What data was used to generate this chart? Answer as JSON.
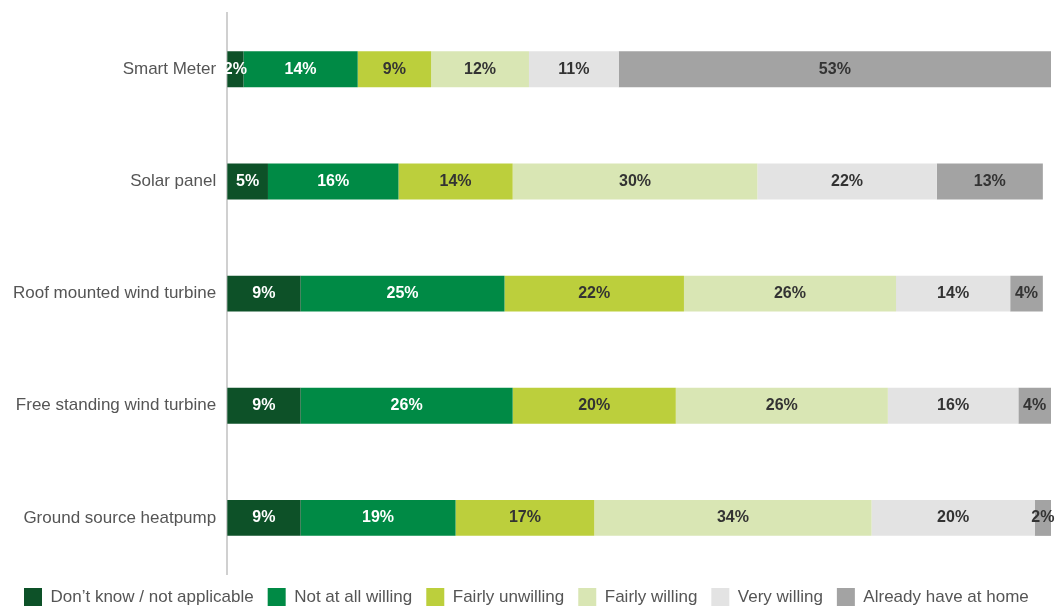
{
  "chart_data": {
    "type": "bar",
    "orientation": "horizontal",
    "stacked": true,
    "categories": [
      "Smart Meter",
      "Solar panel",
      "Roof mounted wind turbine",
      "Free standing wind turbine",
      "Ground source heatpump"
    ],
    "series": [
      {
        "name": "Don’t know / not applicable",
        "color": "#0d5128",
        "values": [
          2,
          5,
          9,
          9,
          9
        ],
        "value_labels": [
          "2%",
          "5%",
          "9%",
          "9%",
          "9%"
        ]
      },
      {
        "name": "Not at all willing",
        "color": "#008a45",
        "values": [
          14,
          16,
          25,
          26,
          19
        ],
        "value_labels": [
          "14%",
          "16%",
          "25%",
          "26%",
          "19%"
        ]
      },
      {
        "name": "Fairly unwilling",
        "color": "#bccf3c",
        "values": [
          9,
          14,
          22,
          20,
          17
        ],
        "value_labels": [
          "9%",
          "14%",
          "22%",
          "20%",
          "17%"
        ]
      },
      {
        "name": "Fairly willing",
        "color": "#d9e6b4",
        "values": [
          12,
          30,
          26,
          26,
          34
        ],
        "value_labels": [
          "12%",
          "30%",
          "26%",
          "26%",
          "34%"
        ]
      },
      {
        "name": "Very willing",
        "color": "#e3e3e3",
        "values": [
          11,
          22,
          14,
          16,
          20
        ],
        "value_labels": [
          "11%",
          "22%",
          "14%",
          "16%",
          "20%"
        ]
      },
      {
        "name": "Already have at home",
        "color": "#a3a3a3",
        "values": [
          53,
          13,
          4,
          4,
          2
        ],
        "value_labels": [
          "53%",
          "13%",
          "4%",
          "4%",
          "2%"
        ]
      }
    ],
    "xlim": [
      0,
      101
    ],
    "tick_labels": "y",
    "legend": "bottom"
  }
}
